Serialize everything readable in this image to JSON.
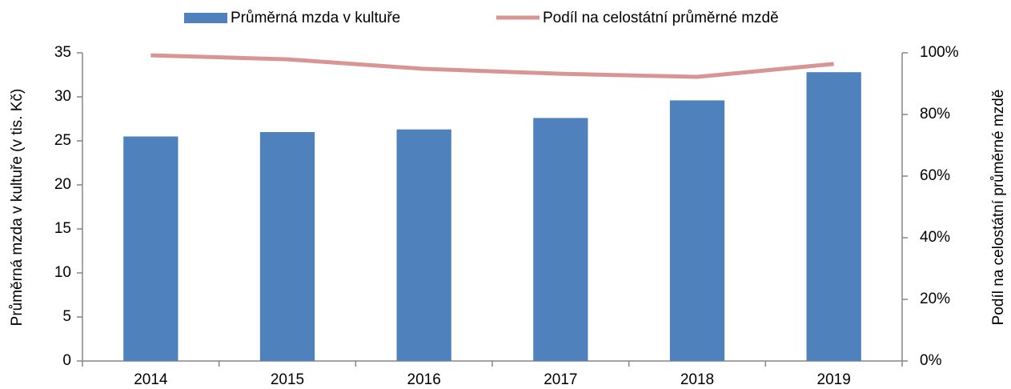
{
  "chart_data": {
    "type": "bar",
    "categories": [
      "2014",
      "2015",
      "2016",
      "2017",
      "2018",
      "2019"
    ],
    "series": [
      {
        "name": "Průměrná mzda v kultuře",
        "type": "bar",
        "color": "#4f81bd",
        "values": [
          25.5,
          26.0,
          26.3,
          27.6,
          29.6,
          32.8
        ]
      },
      {
        "name": "Podíl na celostátní průměrné mzdě",
        "type": "line",
        "axis": "y2",
        "color": "#d99594",
        "values": [
          99.2,
          97.9,
          94.8,
          93.2,
          92.2,
          96.4
        ]
      }
    ],
    "y_label": "Průměrná mzda v kultuře (v tis. Kč)",
    "y2_label": "Podíl na celostátní průměrné mzdě",
    "ylim": [
      0,
      35
    ],
    "yticks": [
      0,
      5,
      10,
      15,
      20,
      25,
      30,
      35
    ],
    "y2lim": [
      0,
      100
    ],
    "y2ticks": [
      {
        "value": 0,
        "label": "0%"
      },
      {
        "value": 20,
        "label": "20%"
      },
      {
        "value": 40,
        "label": "40%"
      },
      {
        "value": 60,
        "label": "60%"
      },
      {
        "value": 80,
        "label": "80%"
      },
      {
        "value": 100,
        "label": "100%"
      }
    ],
    "legend": "top",
    "grid": false
  }
}
